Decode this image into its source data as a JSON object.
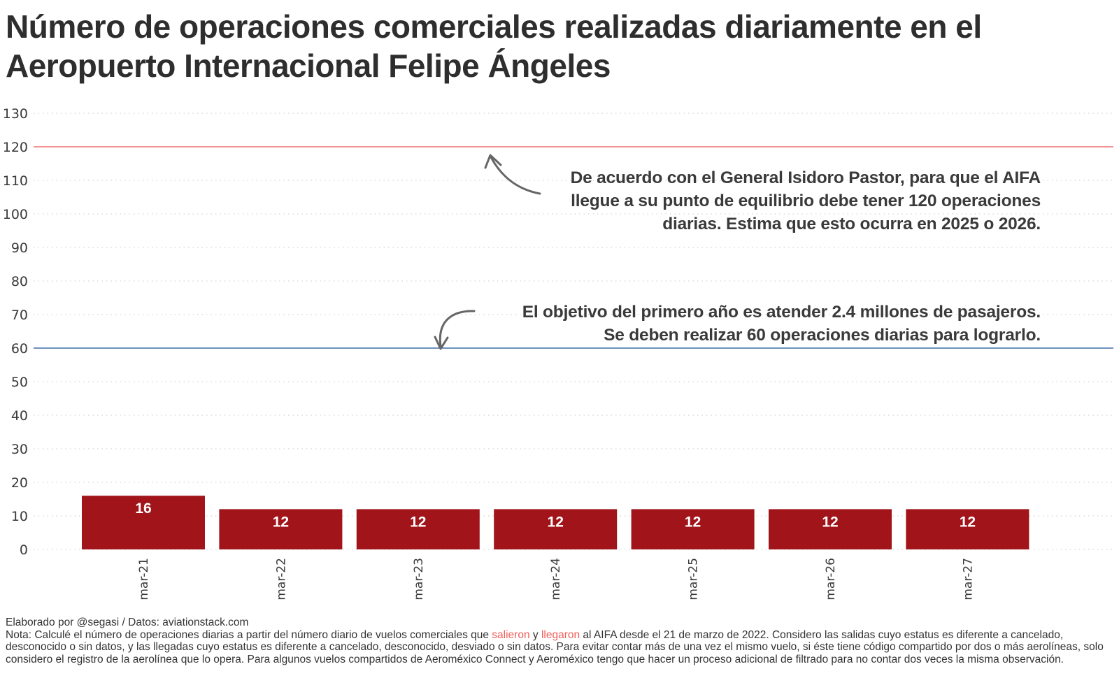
{
  "title": "Número de operaciones comerciales realizadas diariamente en el Aeropuerto Internacional Felipe Ángeles",
  "chart_data": {
    "type": "bar",
    "title": "Número de operaciones comerciales realizadas diariamente en el Aeropuerto Internacional Felipe Ángeles",
    "xlabel": "",
    "ylabel": "",
    "categories": [
      "mar-21",
      "mar-22",
      "mar-23",
      "mar-24",
      "mar-25",
      "mar-26",
      "mar-27"
    ],
    "values": [
      16,
      12,
      12,
      12,
      12,
      12,
      12
    ],
    "data_labels": [
      "16",
      "12",
      "12",
      "12",
      "12",
      "12",
      "12"
    ],
    "ylim": [
      0,
      130
    ],
    "yticks": [
      0,
      10,
      20,
      30,
      40,
      50,
      60,
      70,
      80,
      90,
      100,
      110,
      120,
      130
    ],
    "grid": true,
    "grid_style": "dotted",
    "legend": "none",
    "bar_color": "#a0141a",
    "reference_lines": [
      {
        "value": 120,
        "color": "#f07070",
        "label": "De acuerdo con el General Isidoro Pastor, para que el AIFA llegue a su punto de equilibrio debe tener 120 operaciones diarias. Estima que esto ocurra en 2025 o 2026."
      },
      {
        "value": 60,
        "color": "#3e6fa8",
        "label": "El objetivo del primero año es atender 2.4 millones de pasajeros. Se deben realizar 60 operaciones diarias para lograrlo."
      }
    ],
    "annotations": [
      {
        "target": 120,
        "lines": [
          "De acuerdo con el General Isidoro Pastor, para que el AIFA",
          "llegue a su punto de equilibrio debe tener 120 operaciones",
          "diarias. Estima que esto ocurra en 2025 o 2026."
        ]
      },
      {
        "target": 60,
        "lines": [
          "El objetivo del primero año es atender 2.4 millones de pasajeros.",
          "Se deben realizar 60 operaciones diarias para lograrlo."
        ]
      }
    ]
  },
  "footer": {
    "credit": "Elaborado por @segasi / Datos: aviationstack.com",
    "note_prefix": "Nota: Calculé el número de operaciones diarias a partir del número diario de vuelos comerciales que ",
    "note_hl1": "salieron",
    "note_mid": " y ",
    "note_hl2": "llegaron",
    "note_suffix": " al AIFA desde el 21 de marzo de 2022. Considero las salidas cuyo estatus es diferente a cancelado, desconocido o sin datos, y las llegadas cuyo estatus es diferente a cancelado, desconocido, desviado o sin datos. Para evitar contar más de una vez el mismo vuelo, si éste tiene código compartido por dos o más aerolíneas, solo considero el registro de la aerolínea que lo opera. Para algunos vuelos compartidos de Aeroméxico Connect y Aeroméxico tengo que hacer un proceso adicional de filtrado para no contar dos veces la misma observación.",
    "highlight_color": "#f0605a"
  }
}
